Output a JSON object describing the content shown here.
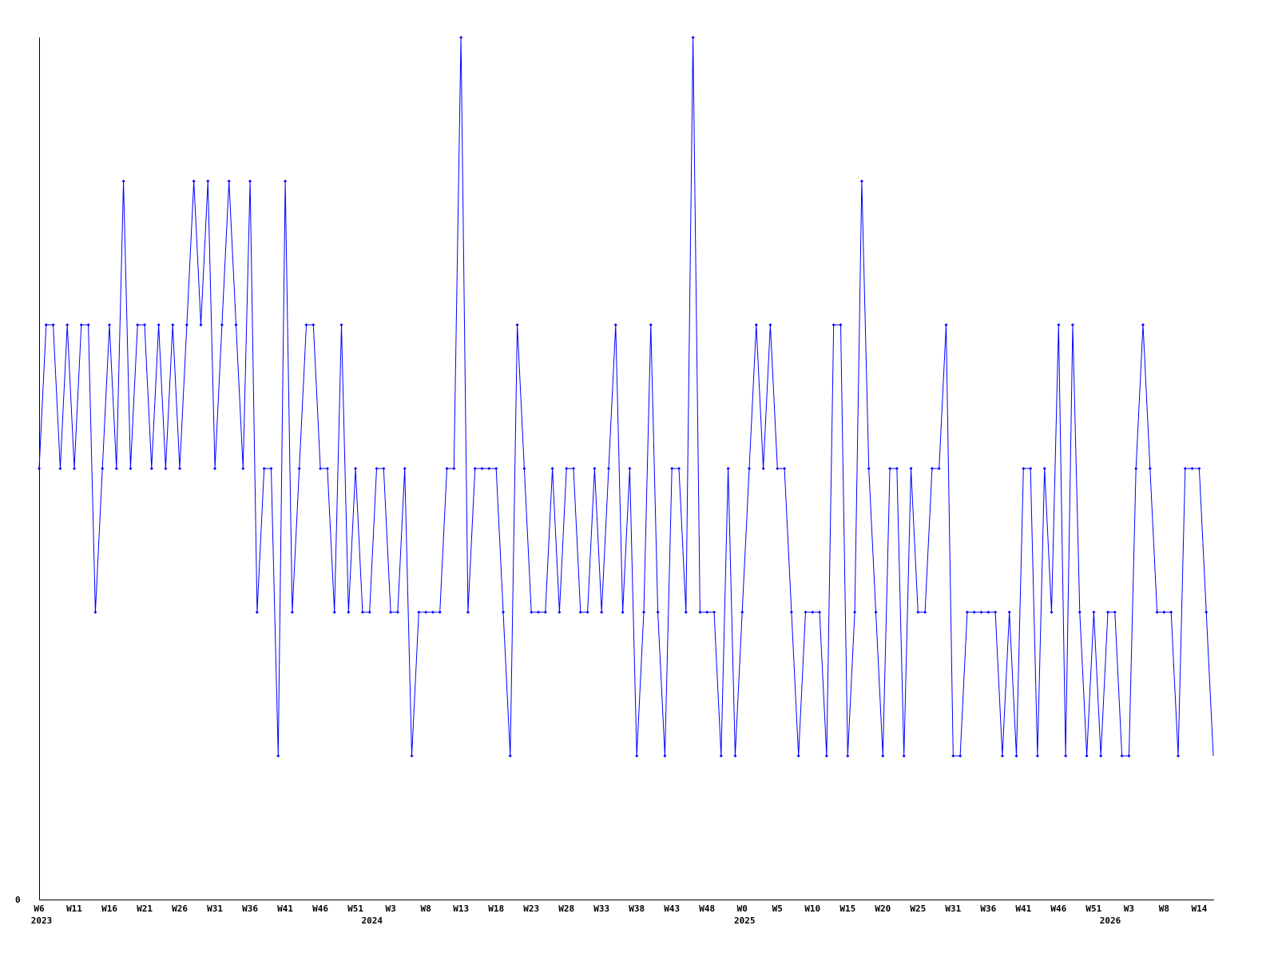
{
  "chart_data": {
    "type": "line",
    "title": "",
    "xlabel": "",
    "ylabel": "",
    "ylim": [
      0,
      6
    ],
    "y_tick_labels": [
      "0"
    ],
    "grid": false,
    "line_color": "#0000ff",
    "axis_color": "#000000",
    "x_tick_labels": [
      "W6",
      "W11",
      "W16",
      "W21",
      "W26",
      "W31",
      "W36",
      "W41",
      "W46",
      "W51",
      "W3",
      "W8",
      "W13",
      "W18",
      "W23",
      "W28",
      "W33",
      "W38",
      "W43",
      "W48",
      "W0",
      "W5",
      "W10",
      "W15",
      "W20",
      "W25",
      "W31",
      "W36",
      "W41",
      "W46",
      "W51",
      "W3",
      "W8",
      "W14"
    ],
    "x_tick_every": 5,
    "year_labels": [
      {
        "label": "2023",
        "at_index": 0
      },
      {
        "label": "2024",
        "at_index": 47
      },
      {
        "label": "2025",
        "at_index": 100
      },
      {
        "label": "2026",
        "at_index": 152
      }
    ],
    "series": [
      {
        "values": [
          3,
          4,
          4,
          3,
          4,
          3,
          4,
          4,
          2,
          3,
          4,
          3,
          5,
          3,
          4,
          4,
          3,
          4,
          3,
          4,
          3,
          4,
          5,
          4,
          5,
          3,
          4,
          5,
          4,
          3,
          5,
          2,
          3,
          3,
          1,
          5,
          2,
          3,
          4,
          4,
          3,
          3,
          2,
          4,
          2,
          3,
          2,
          2,
          3,
          3,
          2,
          2,
          3,
          1,
          2,
          2,
          2,
          2,
          3,
          3,
          6,
          2,
          3,
          3,
          3,
          3,
          2,
          1,
          4,
          3,
          2,
          2,
          2,
          3,
          2,
          3,
          3,
          2,
          2,
          3,
          2,
          3,
          4,
          2,
          3,
          1,
          2,
          4,
          2,
          1,
          3,
          3,
          2,
          6,
          2,
          2,
          2,
          1,
          3,
          1,
          2,
          3,
          4,
          3,
          4,
          3,
          3,
          2,
          1,
          2,
          2,
          2,
          1,
          4,
          4,
          1,
          2,
          5,
          3,
          2,
          1,
          3,
          3,
          1,
          3,
          2,
          2,
          3,
          3,
          4,
          1,
          1,
          2,
          2,
          2,
          2,
          2,
          1,
          2,
          1,
          3,
          3,
          1,
          3,
          2,
          4,
          1,
          4,
          2,
          1,
          2,
          1,
          2,
          2,
          1,
          1,
          3,
          4,
          3,
          2,
          2,
          2,
          1,
          3,
          3,
          3,
          2,
          1
        ]
      }
    ]
  }
}
